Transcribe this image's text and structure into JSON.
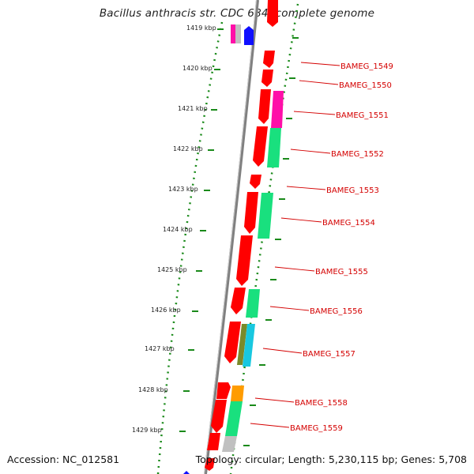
{
  "title": "Bacillus anthracis str. CDC 684, complete genome",
  "accession": "Accession: NC_012581",
  "topology": "Topology: circular; Length: 5,230,115 bp; Genes: 5,708",
  "colors": {
    "backbone": "#808080",
    "gene_primary": "#ff0000",
    "label": "#d40000",
    "tick": "#1a8a1a",
    "cog_magenta": "#ff0fa8",
    "cog_green": "#19e07e",
    "cog_gray": "#c0c0c0",
    "cog_olive": "#7a8a2a",
    "cog_cyan": "#18c8e0",
    "cog_orange": "#ff9c00",
    "cog_blue": "#1010ff"
  },
  "scale_labels": [
    "1419 kbp",
    "1420 kbp",
    "1421 kbp",
    "1422 kbp",
    "1423 kbp",
    "1424 kbp",
    "1425 kbp",
    "1426 kbp",
    "1427 kbp",
    "1428 kbp",
    "1429 kbp"
  ],
  "gene_labels": [
    "BAMEG_1549",
    "BAMEG_1550",
    "BAMEG_1551",
    "BAMEG_1552",
    "BAMEG_1553",
    "BAMEG_1554",
    "BAMEG_1555",
    "BAMEG_1556",
    "BAMEG_1557",
    "BAMEG_1558",
    "BAMEG_1559"
  ]
}
